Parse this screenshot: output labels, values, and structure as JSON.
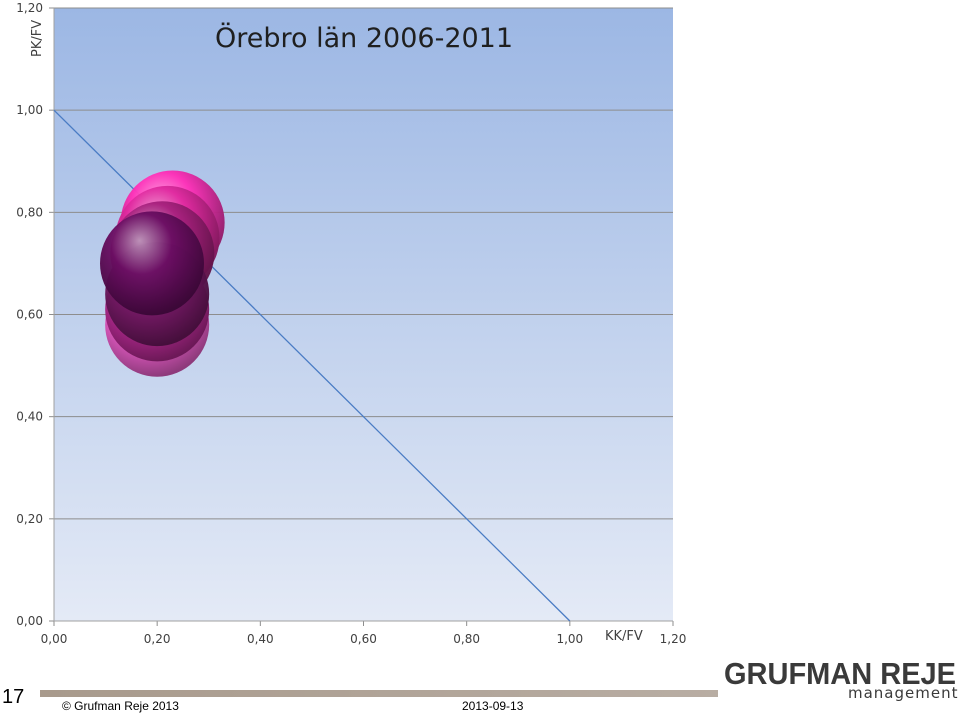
{
  "chart_data": {
    "type": "scatter",
    "title": "Örebro län 2006-2011",
    "xlabel": "KK/FV",
    "ylabel": "PK/FV",
    "xlim": [
      0,
      1.2
    ],
    "ylim": [
      0,
      1.2
    ],
    "x_ticks": [
      "0,00",
      "0,20",
      "0,40",
      "0,60",
      "0,80",
      "1,00",
      "1,20"
    ],
    "y_ticks": [
      "0,00",
      "0,20",
      "0,40",
      "0,60",
      "0,80",
      "1,00",
      "1,20"
    ],
    "grid": true,
    "reference_line": {
      "from": [
        0,
        1
      ],
      "to": [
        1,
        0
      ],
      "color": "#4a7cc4"
    },
    "points": [
      {
        "x": 0.23,
        "y": 0.78,
        "color": "#ff2fb8"
      },
      {
        "x": 0.22,
        "y": 0.75,
        "color": "#e02aa0"
      },
      {
        "x": 0.21,
        "y": 0.72,
        "color": "#a8207e"
      },
      {
        "x": 0.2,
        "y": 0.58,
        "color": "#ff5fd8"
      },
      {
        "x": 0.2,
        "y": 0.61,
        "color": "#c02a9a"
      },
      {
        "x": 0.2,
        "y": 0.64,
        "color": "#7a1a6a"
      },
      {
        "x": 0.19,
        "y": 0.7,
        "color": "#6a0d62"
      }
    ]
  },
  "footer": {
    "slide_number": "17",
    "copyright": "© Grufman Reje 2013",
    "date": "2013-09-13",
    "logo_main": "GRUFMAN REJE",
    "logo_sub": "management"
  }
}
